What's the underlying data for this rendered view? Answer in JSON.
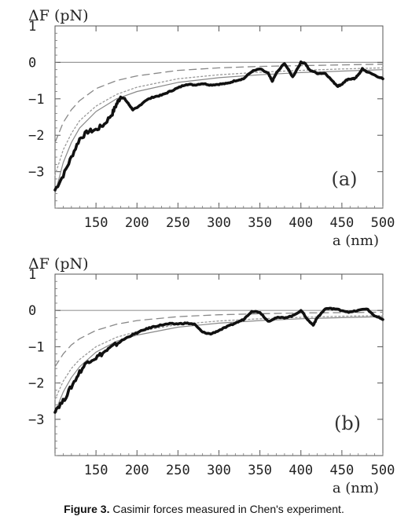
{
  "caption": {
    "label": "Figure 3.",
    "text": " Casimir forces measured in Chen's experiment."
  },
  "chart_data": [
    {
      "type": "line",
      "panel_label": "(a)",
      "ylabel": "ΔF (pN)",
      "xlabel": "a (nm)",
      "xlim": [
        100,
        500
      ],
      "ylim": [
        -4,
        1
      ],
      "xticks": [
        150,
        200,
        250,
        300,
        350,
        400,
        450,
        500
      ],
      "yticks": [
        1,
        0,
        -1,
        -2,
        -3
      ],
      "series": [
        {
          "style": "thick-noisy",
          "x": [
            100,
            110,
            120,
            130,
            140,
            150,
            160,
            170,
            175,
            180,
            185,
            190,
            195,
            200,
            210,
            220,
            230,
            240,
            250,
            260,
            270,
            280,
            290,
            300,
            310,
            320,
            330,
            340,
            350,
            360,
            365,
            370,
            380,
            390,
            400,
            405,
            410,
            420,
            430,
            440,
            445,
            450,
            455,
            460,
            465,
            470,
            475,
            480,
            490,
            500
          ],
          "y": [
            -3.5,
            -3.1,
            -2.6,
            -2.1,
            -1.9,
            -1.85,
            -1.7,
            -1.4,
            -1.15,
            -0.95,
            -1.0,
            -1.15,
            -1.3,
            -1.25,
            -1.05,
            -0.95,
            -0.9,
            -0.8,
            -0.7,
            -0.6,
            -0.62,
            -0.58,
            -0.62,
            -0.6,
            -0.58,
            -0.5,
            -0.45,
            -0.25,
            -0.18,
            -0.3,
            -0.52,
            -0.3,
            -0.02,
            -0.4,
            0.0,
            -0.02,
            -0.2,
            -0.3,
            -0.3,
            -0.55,
            -0.65,
            -0.6,
            -0.5,
            -0.45,
            -0.45,
            -0.35,
            -0.18,
            -0.25,
            -0.35,
            -0.45
          ]
        },
        {
          "style": "thin-solid",
          "x": [
            100,
            110,
            120,
            130,
            150,
            175,
            200,
            250,
            300,
            350,
            400,
            450,
            500
          ],
          "y": [
            -3.6,
            -2.75,
            -2.2,
            -1.8,
            -1.35,
            -1.0,
            -0.8,
            -0.55,
            -0.42,
            -0.34,
            -0.28,
            -0.24,
            -0.2
          ]
        },
        {
          "style": "dashed",
          "x": [
            100,
            110,
            120,
            130,
            150,
            175,
            200,
            250,
            300,
            350,
            400,
            450,
            500
          ],
          "y": [
            -2.2,
            -1.65,
            -1.3,
            -1.05,
            -0.72,
            -0.5,
            -0.37,
            -0.22,
            -0.15,
            -0.11,
            -0.09,
            -0.07,
            -0.05
          ]
        },
        {
          "style": "dotted",
          "x": [
            100,
            110,
            120,
            130,
            150,
            175,
            200,
            250,
            300,
            350,
            400,
            450,
            500
          ],
          "y": [
            -3.1,
            -2.4,
            -1.95,
            -1.6,
            -1.2,
            -0.88,
            -0.68,
            -0.45,
            -0.34,
            -0.27,
            -0.22,
            -0.18,
            -0.15
          ]
        }
      ]
    },
    {
      "type": "line",
      "panel_label": "(b)",
      "ylabel": "ΔF (pN)",
      "xlabel": "a (nm)",
      "xlim": [
        100,
        500
      ],
      "ylim": [
        -4,
        1
      ],
      "xticks": [
        150,
        200,
        250,
        300,
        350,
        400,
        450,
        500
      ],
      "yticks": [
        1,
        0,
        -1,
        -2,
        -3
      ],
      "series": [
        {
          "style": "thick-noisy",
          "x": [
            100,
            110,
            120,
            130,
            140,
            150,
            160,
            170,
            180,
            190,
            200,
            210,
            220,
            230,
            240,
            250,
            260,
            270,
            280,
            290,
            300,
            310,
            320,
            330,
            340,
            350,
            360,
            370,
            380,
            390,
            400,
            410,
            415,
            420,
            430,
            440,
            450,
            460,
            470,
            480,
            490,
            500
          ],
          "y": [
            -2.75,
            -2.5,
            -2.1,
            -1.7,
            -1.4,
            -1.3,
            -1.15,
            -1.0,
            -0.85,
            -0.72,
            -0.62,
            -0.52,
            -0.45,
            -0.4,
            -0.37,
            -0.37,
            -0.35,
            -0.38,
            -0.6,
            -0.65,
            -0.55,
            -0.45,
            -0.35,
            -0.25,
            -0.02,
            -0.05,
            -0.3,
            -0.2,
            -0.2,
            -0.15,
            0.0,
            -0.3,
            -0.4,
            -0.2,
            0.05,
            0.05,
            0.0,
            -0.05,
            0.0,
            0.05,
            -0.15,
            -0.25
          ]
        },
        {
          "style": "thin-solid",
          "x": [
            100,
            110,
            120,
            130,
            150,
            175,
            200,
            250,
            300,
            350,
            400,
            450,
            500
          ],
          "y": [
            -2.8,
            -2.25,
            -1.85,
            -1.55,
            -1.15,
            -0.85,
            -0.68,
            -0.46,
            -0.35,
            -0.28,
            -0.23,
            -0.2,
            -0.17
          ]
        },
        {
          "style": "dashed",
          "x": [
            100,
            110,
            120,
            130,
            150,
            175,
            200,
            250,
            300,
            350,
            400,
            450,
            500
          ],
          "y": [
            -1.55,
            -1.2,
            -0.95,
            -0.78,
            -0.55,
            -0.38,
            -0.28,
            -0.17,
            -0.12,
            -0.09,
            -0.07,
            -0.06,
            -0.05
          ]
        },
        {
          "style": "dotted",
          "x": [
            100,
            110,
            120,
            130,
            150,
            175,
            200,
            250,
            300,
            350,
            400,
            450,
            500
          ],
          "y": [
            -2.45,
            -1.95,
            -1.6,
            -1.35,
            -1.0,
            -0.74,
            -0.58,
            -0.39,
            -0.29,
            -0.23,
            -0.19,
            -0.16,
            -0.14
          ]
        }
      ]
    }
  ]
}
